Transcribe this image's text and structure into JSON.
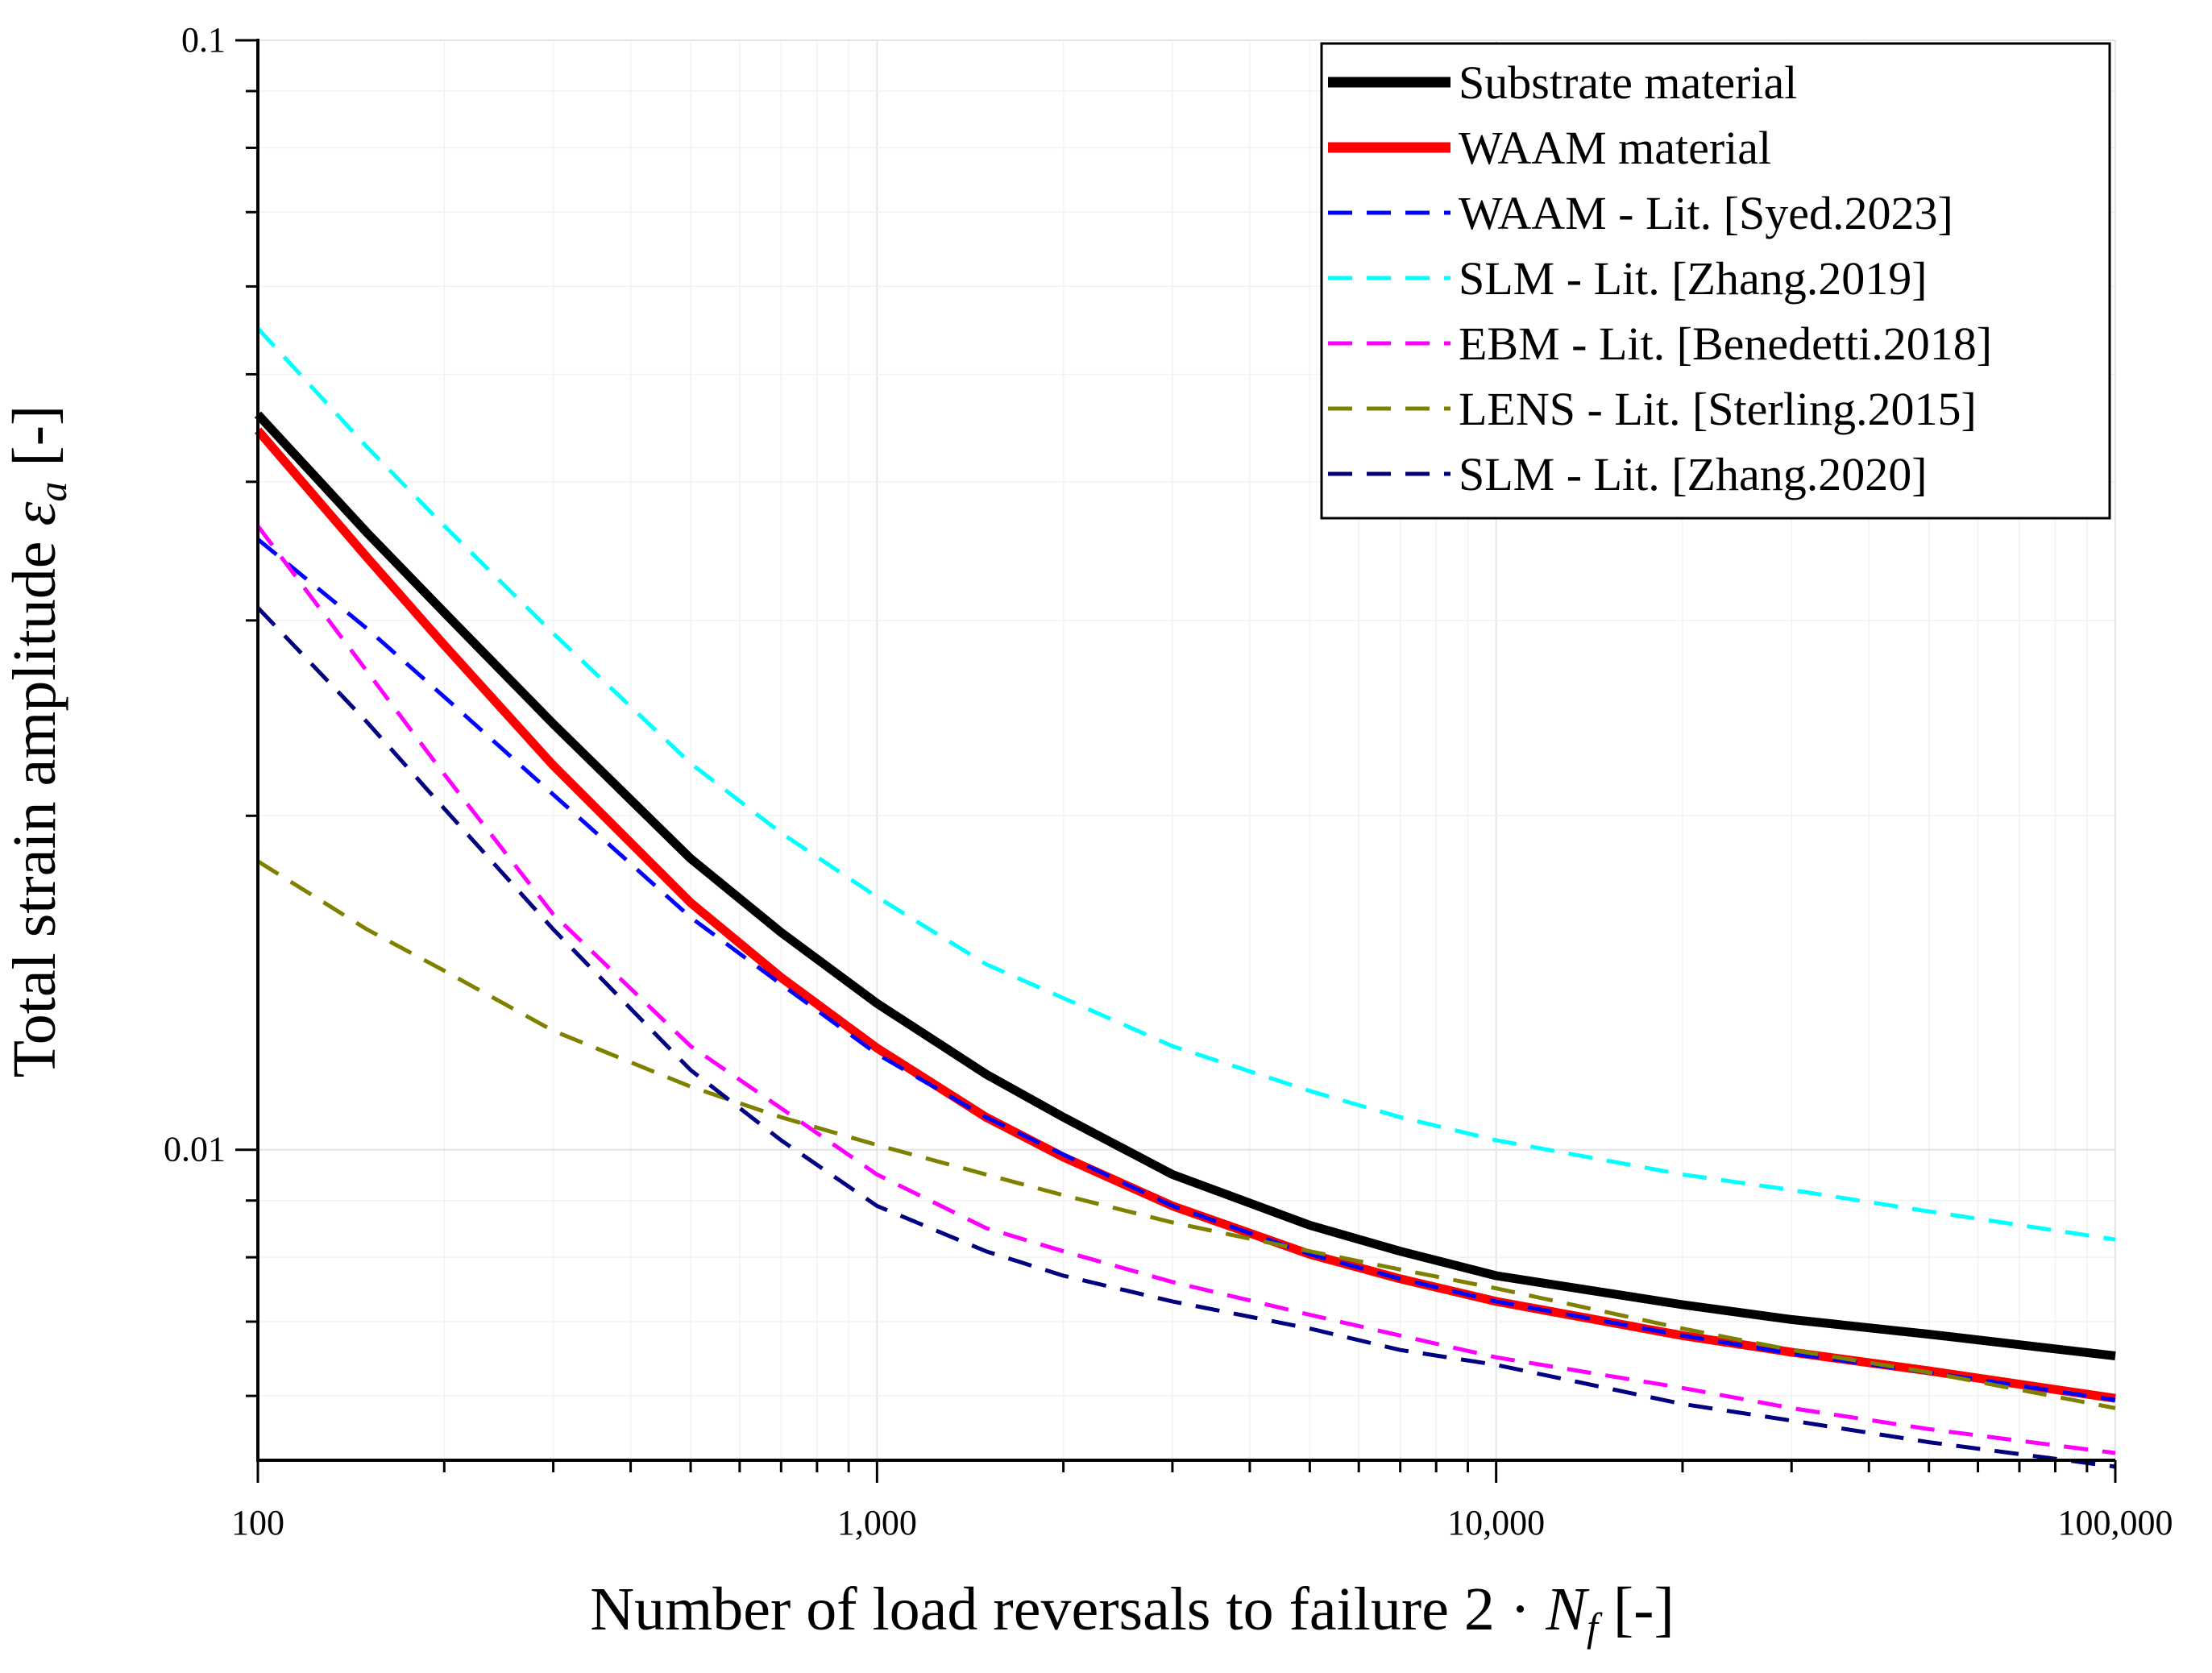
{
  "chart_data": {
    "type": "line",
    "xscale": "log",
    "yscale": "log",
    "xlim": [
      100,
      100000
    ],
    "ylim": [
      0.00525,
      0.1
    ],
    "xticks": [
      {
        "value": 100,
        "label": "100"
      },
      {
        "value": 1000,
        "label": "1,000"
      },
      {
        "value": 10000,
        "label": "10,000"
      },
      {
        "value": 100000,
        "label": "100,000"
      }
    ],
    "yticks": [
      {
        "value": 0.1,
        "label": "0.1"
      },
      {
        "value": 0.01,
        "label": "0.01"
      }
    ],
    "xlabel": {
      "text": "Number of load reversals to failure 2 · ",
      "symbol": "N",
      "subscript": "f",
      "suffix": " [-]"
    },
    "ylabel": {
      "text": "Total strain amplitude ",
      "symbol": "ε",
      "subscript": "a",
      "suffix": " [-]"
    },
    "grid": true,
    "legend_position": "top-right",
    "series": [
      {
        "name": "Substrate material",
        "color": "#000000",
        "style": "solid",
        "width": 11,
        "points": [
          [
            100,
            0.046
          ],
          [
            150,
            0.036
          ],
          [
            200,
            0.0305
          ],
          [
            300,
            0.0242
          ],
          [
            500,
            0.0183
          ],
          [
            700,
            0.0157
          ],
          [
            1000,
            0.01355
          ],
          [
            1500,
            0.0117
          ],
          [
            2000,
            0.0107
          ],
          [
            3000,
            0.0095
          ],
          [
            5000,
            0.00855
          ],
          [
            7000,
            0.0081
          ],
          [
            10000,
            0.0077
          ],
          [
            20000,
            0.00725
          ],
          [
            30000,
            0.00703
          ],
          [
            50000,
            0.00682
          ],
          [
            100000,
            0.00652
          ]
        ]
      },
      {
        "name": "WAAM material",
        "color": "#ff0000",
        "style": "solid",
        "width": 11,
        "points": [
          [
            100,
            0.0445
          ],
          [
            150,
            0.0342
          ],
          [
            200,
            0.0285
          ],
          [
            300,
            0.0222
          ],
          [
            500,
            0.0167
          ],
          [
            700,
            0.0143
          ],
          [
            1000,
            0.01235
          ],
          [
            1500,
            0.0107
          ],
          [
            2000,
            0.00985
          ],
          [
            3000,
            0.0089
          ],
          [
            5000,
            0.00805
          ],
          [
            7000,
            0.00765
          ],
          [
            10000,
            0.0073
          ],
          [
            20000,
            0.0068
          ],
          [
            30000,
            0.00657
          ],
          [
            50000,
            0.00632
          ],
          [
            100000,
            0.00597
          ]
        ]
      },
      {
        "name": "WAAM - Lit. [Syed.2023]",
        "color": "#0000ff",
        "style": "dashed",
        "width": 5,
        "points": [
          [
            100,
            0.0355
          ],
          [
            150,
            0.0295
          ],
          [
            200,
            0.0256
          ],
          [
            300,
            0.0209
          ],
          [
            500,
            0.0162
          ],
          [
            700,
            0.0141
          ],
          [
            1000,
            0.0122
          ],
          [
            1500,
            0.0107
          ],
          [
            2000,
            0.0099
          ],
          [
            3000,
            0.0089
          ],
          [
            5000,
            0.00805
          ],
          [
            7000,
            0.00765
          ],
          [
            10000,
            0.0073
          ],
          [
            20000,
            0.0068
          ],
          [
            30000,
            0.00655
          ],
          [
            50000,
            0.0063
          ],
          [
            100000,
            0.00595
          ]
        ]
      },
      {
        "name": "SLM - Lit. [Zhang.2019]",
        "color": "#00ffff",
        "style": "dashed",
        "width": 5,
        "points": [
          [
            100,
            0.055
          ],
          [
            150,
            0.043
          ],
          [
            200,
            0.0365
          ],
          [
            300,
            0.0292
          ],
          [
            500,
            0.0223
          ],
          [
            700,
            0.0193
          ],
          [
            1000,
            0.0169
          ],
          [
            1500,
            0.0147
          ],
          [
            2000,
            0.0137
          ],
          [
            3000,
            0.0124
          ],
          [
            5000,
            0.0113
          ],
          [
            7000,
            0.0107
          ],
          [
            10000,
            0.0102
          ],
          [
            20000,
            0.0095
          ],
          [
            30000,
            0.0092
          ],
          [
            50000,
            0.0088
          ],
          [
            100000,
            0.0083
          ]
        ]
      },
      {
        "name": "EBM - Lit. [Benedetti.2018]",
        "color": "#ff00ff",
        "style": "dashed",
        "width": 5,
        "points": [
          [
            100,
            0.0365
          ],
          [
            150,
            0.027
          ],
          [
            200,
            0.0218
          ],
          [
            300,
            0.0163
          ],
          [
            500,
            0.0124
          ],
          [
            700,
            0.0109
          ],
          [
            1000,
            0.0095
          ],
          [
            1500,
            0.0085
          ],
          [
            2000,
            0.0081
          ],
          [
            3000,
            0.0076
          ],
          [
            5000,
            0.0071
          ],
          [
            7000,
            0.0068
          ],
          [
            10000,
            0.0065
          ],
          [
            20000,
            0.0061
          ],
          [
            30000,
            0.00585
          ],
          [
            50000,
            0.0056
          ],
          [
            100000,
            0.00533
          ]
        ]
      },
      {
        "name": "LENS - Lit. [Sterling.2015]",
        "color": "#808000",
        "style": "dashed",
        "width": 5,
        "points": [
          [
            100,
            0.0182
          ],
          [
            150,
            0.0158
          ],
          [
            200,
            0.0145
          ],
          [
            300,
            0.0128
          ],
          [
            500,
            0.0114
          ],
          [
            700,
            0.0107
          ],
          [
            1000,
            0.0101
          ],
          [
            1500,
            0.0095
          ],
          [
            2000,
            0.0091
          ],
          [
            3000,
            0.0086
          ],
          [
            5000,
            0.0081
          ],
          [
            7000,
            0.0078
          ],
          [
            10000,
            0.0075
          ],
          [
            20000,
            0.0069
          ],
          [
            30000,
            0.0066
          ],
          [
            50000,
            0.0063
          ],
          [
            100000,
            0.00585
          ]
        ]
      },
      {
        "name": "SLM - Lit. [Zhang.2020]",
        "color": "#000080",
        "style": "dashed",
        "width": 5,
        "points": [
          [
            100,
            0.0308
          ],
          [
            150,
            0.0243
          ],
          [
            200,
            0.0203
          ],
          [
            300,
            0.0158
          ],
          [
            500,
            0.0118
          ],
          [
            700,
            0.0102
          ],
          [
            1000,
            0.0089
          ],
          [
            1500,
            0.0081
          ],
          [
            2000,
            0.0077
          ],
          [
            3000,
            0.0073
          ],
          [
            5000,
            0.0069
          ],
          [
            7000,
            0.0066
          ],
          [
            10000,
            0.0064
          ],
          [
            20000,
            0.0059
          ],
          [
            30000,
            0.0057
          ],
          [
            50000,
            0.00545
          ],
          [
            100000,
            0.00518
          ]
        ]
      }
    ]
  }
}
